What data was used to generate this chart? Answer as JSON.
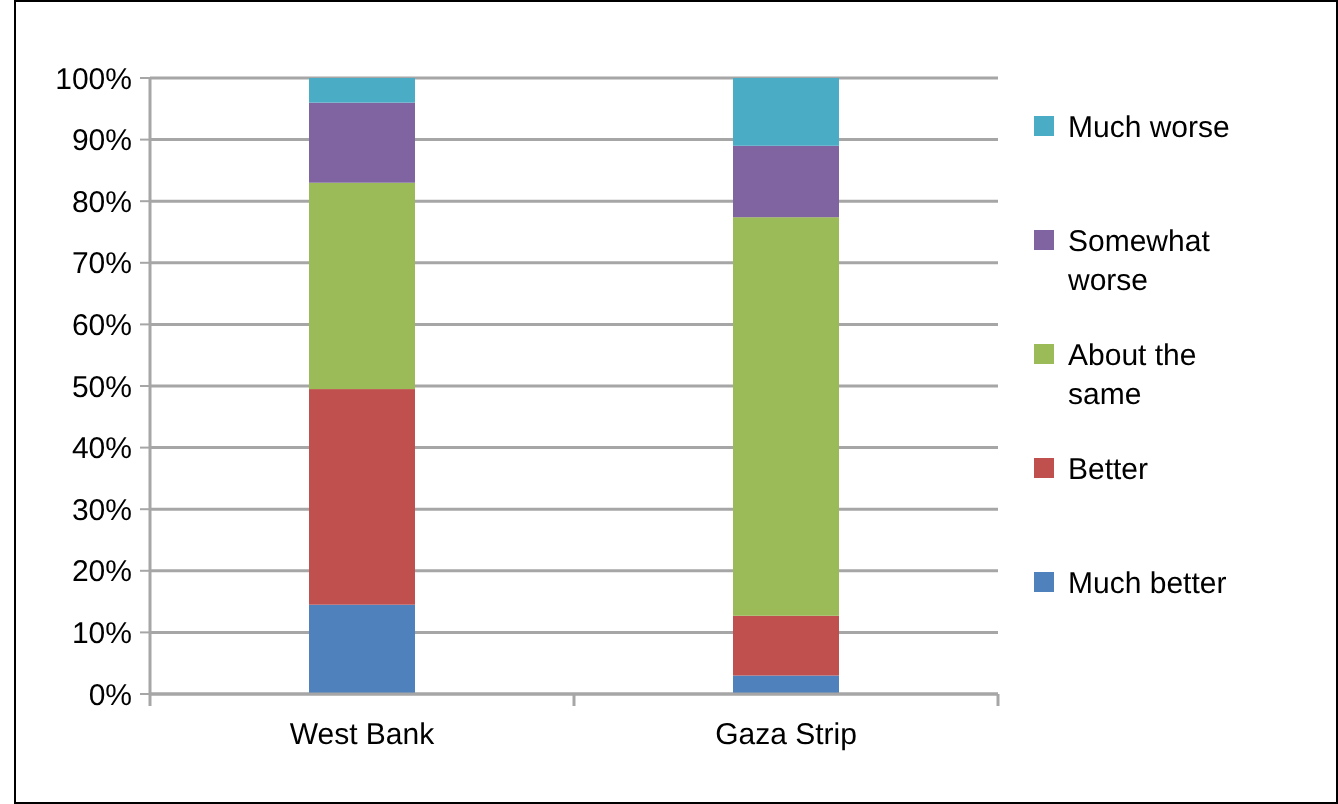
{
  "chart_data": {
    "type": "bar",
    "stacked": true,
    "categories": [
      "West Bank",
      "Gaza Strip"
    ],
    "series": [
      {
        "name": "Much better",
        "color": "#4f81bd",
        "values": [
          14.5,
          3
        ]
      },
      {
        "name": "Better",
        "color": "#c0504d",
        "values": [
          35,
          9.7
        ]
      },
      {
        "name": "About the same",
        "color": "#9bbb59",
        "values": [
          33.5,
          64.7
        ]
      },
      {
        "name": "Somewhat worse",
        "color": "#8064a2",
        "values": [
          13,
          11.6
        ]
      },
      {
        "name": "Much worse",
        "color": "#4bacc6",
        "values": [
          4,
          11
        ]
      }
    ],
    "ylim": [
      0,
      100
    ],
    "yticks": [
      {
        "value": 0,
        "label": "0%"
      },
      {
        "value": 10,
        "label": "10%"
      },
      {
        "value": 20,
        "label": "20%"
      },
      {
        "value": 30,
        "label": "30%"
      },
      {
        "value": 40,
        "label": "40%"
      },
      {
        "value": 50,
        "label": "50%"
      },
      {
        "value": 60,
        "label": "60%"
      },
      {
        "value": 70,
        "label": "70%"
      },
      {
        "value": 80,
        "label": "80%"
      },
      {
        "value": 90,
        "label": "90%"
      },
      {
        "value": 100,
        "label": "100%"
      }
    ],
    "grid": "y",
    "legend": "right"
  }
}
